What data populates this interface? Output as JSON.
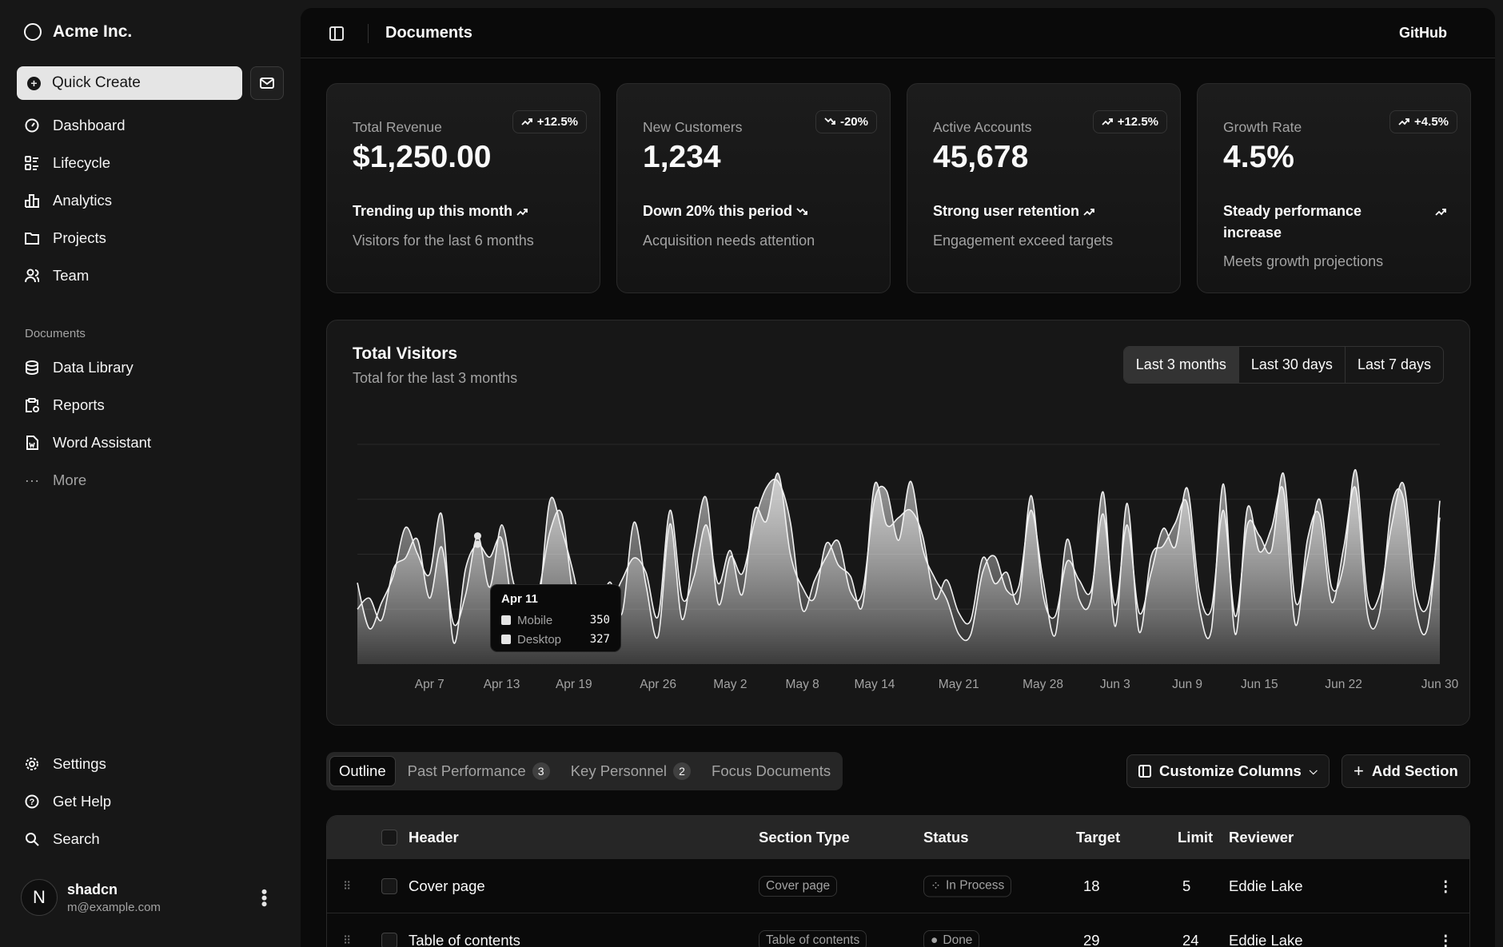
{
  "sidebar": {
    "brand": "Acme Inc.",
    "quick_create": "Quick Create",
    "main_items": [
      {
        "label": "Dashboard",
        "icon": "gauge-icon"
      },
      {
        "label": "Lifecycle",
        "icon": "list-details-icon"
      },
      {
        "label": "Analytics",
        "icon": "bar-chart-icon"
      },
      {
        "label": "Projects",
        "icon": "folder-icon"
      },
      {
        "label": "Team",
        "icon": "users-icon"
      }
    ],
    "documents_label": "Documents",
    "document_items": [
      {
        "label": "Data Library",
        "icon": "database-icon"
      },
      {
        "label": "Reports",
        "icon": "report-icon"
      },
      {
        "label": "Word Assistant",
        "icon": "file-word-icon"
      },
      {
        "label": "More",
        "icon": "dots-icon"
      }
    ],
    "footer_items": [
      {
        "label": "Settings",
        "icon": "gear-icon"
      },
      {
        "label": "Get Help",
        "icon": "help-icon"
      },
      {
        "label": "Search",
        "icon": "search-icon"
      }
    ],
    "user": {
      "name": "shadcn",
      "email": "m@example.com",
      "initial": "N"
    }
  },
  "header": {
    "title": "Documents",
    "github": "GitHub"
  },
  "cards": [
    {
      "label": "Total Revenue",
      "badge": "+12.5%",
      "badge_dir": "up",
      "value": "$1,250.00",
      "trend": "Trending up this month",
      "trend_dir": "up",
      "sub": "Visitors for the last 6 months"
    },
    {
      "label": "New Customers",
      "badge": "-20%",
      "badge_dir": "down",
      "value": "1,234",
      "trend": "Down 20% this period",
      "trend_dir": "down",
      "sub": "Acquisition needs attention"
    },
    {
      "label": "Active Accounts",
      "badge": "+12.5%",
      "badge_dir": "up",
      "value": "45,678",
      "trend": "Strong user retention",
      "trend_dir": "up",
      "sub": "Engagement exceed targets"
    },
    {
      "label": "Growth Rate",
      "badge": "+4.5%",
      "badge_dir": "up",
      "value": "4.5%",
      "trend": "Steady performance increase",
      "trend_dir": "up",
      "sub": "Meets growth projections"
    }
  ],
  "visitors": {
    "title": "Total Visitors",
    "subtitle": "Total for the last 3 months",
    "ranges": [
      "Last 3 months",
      "Last 30 days",
      "Last 7 days"
    ],
    "selected_range": "Last 3 months",
    "tooltip": {
      "date": "Apr 11",
      "rows": [
        {
          "name": "Mobile",
          "value": "350"
        },
        {
          "name": "Desktop",
          "value": "327"
        }
      ]
    }
  },
  "chart_data": {
    "type": "area",
    "title": "Total Visitors",
    "ylim": [
      0,
      600
    ],
    "grid": true,
    "x_tick_labels": [
      "Apr 7",
      "Apr 13",
      "Apr 19",
      "Apr 26",
      "May 2",
      "May 8",
      "May 14",
      "May 21",
      "May 28",
      "Jun 3",
      "Jun 9",
      "Jun 15",
      "Jun 22",
      "Jun 30"
    ],
    "x": [
      "Apr 1",
      "Apr 2",
      "Apr 3",
      "Apr 4",
      "Apr 5",
      "Apr 6",
      "Apr 7",
      "Apr 8",
      "Apr 9",
      "Apr 10",
      "Apr 11",
      "Apr 12",
      "Apr 13",
      "Apr 14",
      "Apr 15",
      "Apr 16",
      "Apr 17",
      "Apr 18",
      "Apr 19",
      "Apr 20",
      "Apr 21",
      "Apr 22",
      "Apr 23",
      "Apr 24",
      "Apr 25",
      "Apr 26",
      "Apr 27",
      "Apr 28",
      "Apr 29",
      "Apr 30",
      "May 1",
      "May 2",
      "May 3",
      "May 4",
      "May 5",
      "May 6",
      "May 7",
      "May 8",
      "May 9",
      "May 10",
      "May 11",
      "May 12",
      "May 13",
      "May 14",
      "May 15",
      "May 16",
      "May 17",
      "May 18",
      "May 19",
      "May 20",
      "May 21",
      "May 22",
      "May 23",
      "May 24",
      "May 25",
      "May 26",
      "May 27",
      "May 28",
      "May 29",
      "May 30",
      "May 31",
      "Jun 1",
      "Jun 2",
      "Jun 3",
      "Jun 4",
      "Jun 5",
      "Jun 6",
      "Jun 7",
      "Jun 8",
      "Jun 9",
      "Jun 10",
      "Jun 11",
      "Jun 12",
      "Jun 13",
      "Jun 14",
      "Jun 15",
      "Jun 16",
      "Jun 17",
      "Jun 18",
      "Jun 19",
      "Jun 20",
      "Jun 21",
      "Jun 22",
      "Jun 23",
      "Jun 24",
      "Jun 25",
      "Jun 26",
      "Jun 27",
      "Jun 28",
      "Jun 29",
      "Jun 30"
    ],
    "series": [
      {
        "name": "Mobile",
        "values": [
          150,
          180,
          120,
          260,
          290,
          340,
          180,
          320,
          110,
          190,
          350,
          210,
          380,
          220,
          170,
          190,
          360,
          410,
          180,
          150,
          200,
          170,
          230,
          290,
          250,
          130,
          420,
          180,
          240,
          380,
          220,
          310,
          190,
          420,
          390,
          520,
          300,
          210,
          180,
          330,
          270,
          240,
          160,
          490,
          380,
          400,
          420,
          350,
          180,
          230,
          140,
          120,
          290,
          220,
          250,
          170,
          460,
          190,
          130,
          280,
          230,
          200,
          410,
          160,
          380,
          140,
          250,
          370,
          320,
          480,
          200,
          150,
          420,
          130,
          380,
          350,
          310,
          520,
          170,
          290,
          450,
          210,
          270,
          530,
          180,
          190,
          380,
          490,
          200,
          160,
          400
        ]
      },
      {
        "name": "Desktop",
        "values": [
          222,
          97,
          167,
          242,
          373,
          301,
          245,
          409,
          59,
          261,
          327,
          292,
          342,
          137,
          120,
          138,
          446,
          364,
          243,
          89,
          137,
          224,
          138,
          387,
          215,
          75,
          383,
          122,
          315,
          454,
          165,
          293,
          247,
          385,
          481,
          498,
          388,
          149,
          227,
          293,
          335,
          197,
          197,
          448,
          473,
          338,
          499,
          315,
          235,
          177,
          82,
          81,
          252,
          294,
          201,
          213,
          420,
          233,
          78,
          340,
          178,
          178,
          470,
          103,
          439,
          88,
          294,
          323,
          385,
          438,
          155,
          92,
          492,
          81,
          426,
          307,
          371,
          475,
          107,
          341,
          408,
          169,
          317,
          480,
          132,
          141,
          434,
          448,
          149,
          103,
          446
        ]
      }
    ]
  },
  "tabs": [
    {
      "label": "Outline"
    },
    {
      "label": "Past Performance",
      "count": "3"
    },
    {
      "label": "Key Personnel",
      "count": "2"
    },
    {
      "label": "Focus Documents"
    }
  ],
  "actions": {
    "customize": "Customize Columns",
    "add": "Add Section"
  },
  "table": {
    "columns": [
      "Header",
      "Section Type",
      "Status",
      "Target",
      "Limit",
      "Reviewer"
    ],
    "rows": [
      {
        "header": "Cover page",
        "type": "Cover page",
        "status": "In Process",
        "target": "18",
        "limit": "5",
        "reviewer": "Eddie Lake"
      },
      {
        "header": "Table of contents",
        "type": "Table of contents",
        "status": "Done",
        "target": "29",
        "limit": "24",
        "reviewer": "Eddie Lake"
      }
    ]
  }
}
